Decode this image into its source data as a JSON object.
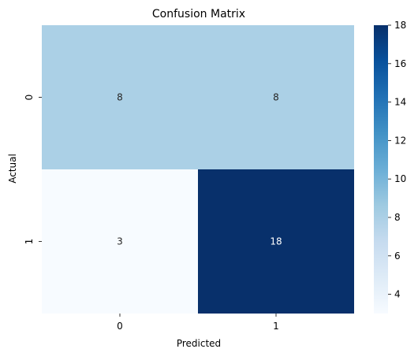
{
  "chart_data": {
    "type": "heatmap",
    "title": "Confusion Matrix",
    "xlabel": "Predicted",
    "ylabel": "Actual",
    "x_categories": [
      "0",
      "1"
    ],
    "y_categories": [
      "0",
      "1"
    ],
    "values": [
      [
        8,
        8
      ],
      [
        3,
        18
      ]
    ],
    "colormap": "Blues",
    "colorbar": {
      "min": 3,
      "max": 18,
      "ticks": [
        4,
        6,
        8,
        10,
        12,
        14,
        16,
        18
      ]
    },
    "legend": "colorbar-right",
    "grid": false
  }
}
